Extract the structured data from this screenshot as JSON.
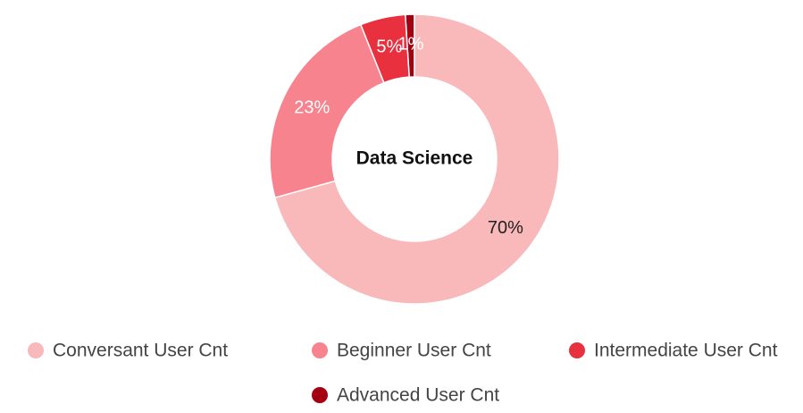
{
  "chart_data": {
    "type": "pie",
    "title": "Data Science",
    "categories": [
      "Conversant User Cnt",
      "Beginner User Cnt",
      "Intermediate User Cnt",
      "Advanced User Cnt"
    ],
    "values": [
      70,
      23,
      5,
      1
    ],
    "value_labels": [
      "70%",
      "23%",
      "5%",
      "1%"
    ],
    "colors": [
      "#f9b8b9",
      "#f7838f",
      "#e8303f",
      "#a50012"
    ],
    "label_colors": [
      "#222222",
      "#ffffff",
      "#ffffff",
      "#ffffff"
    ]
  }
}
